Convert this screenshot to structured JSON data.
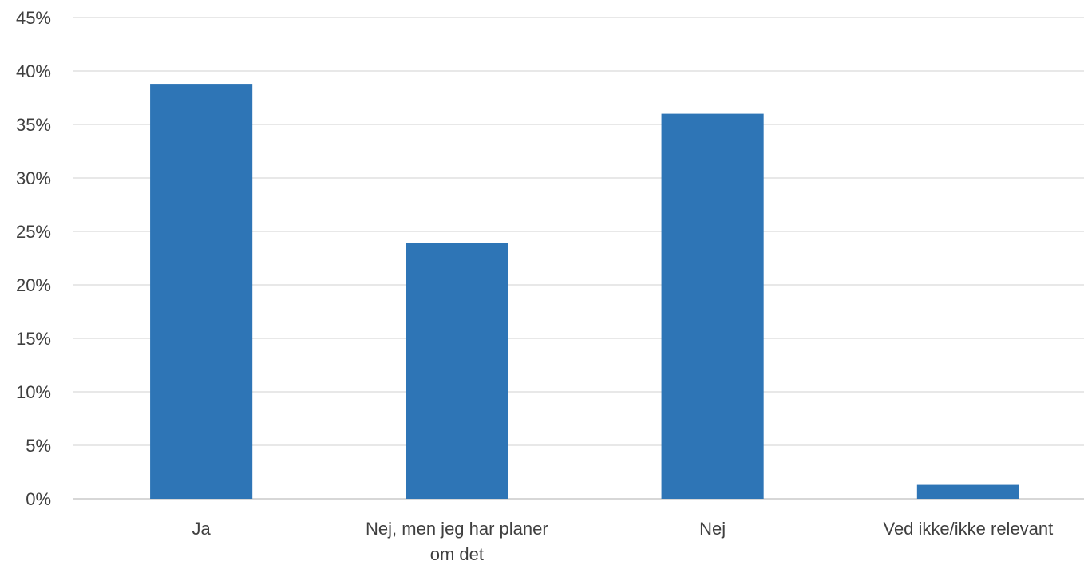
{
  "chart_data": {
    "type": "bar",
    "categories": [
      [
        "Ja"
      ],
      [
        "Nej, men jeg har planer",
        "om det"
      ],
      [
        "Nej"
      ],
      [
        "Ved ikke/ikke relevant"
      ]
    ],
    "values": [
      38.8,
      23.9,
      36.0,
      1.3
    ],
    "ylim": [
      0,
      45
    ],
    "yticks": [
      0,
      5,
      10,
      15,
      20,
      25,
      30,
      35,
      40,
      45
    ],
    "ytick_suffix": "%",
    "bar_color": "#2e75b6",
    "grid": true,
    "legend": "none",
    "title": "",
    "xlabel": "",
    "ylabel": ""
  }
}
